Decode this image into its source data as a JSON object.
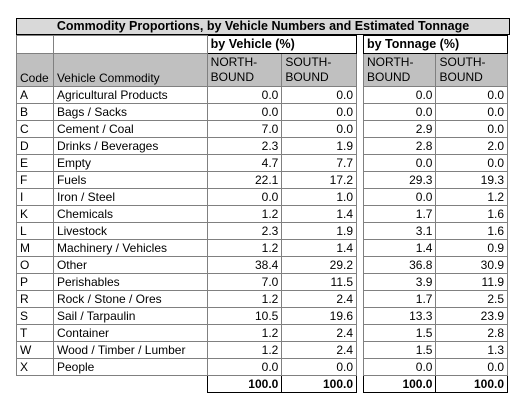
{
  "title": "Commodity Proportions, by Vehicle Numbers and Estimated Tonnage",
  "groups": {
    "vehicle": "by Vehicle (%)",
    "tonnage": "by Tonnage (%)"
  },
  "headers": {
    "code": "Code",
    "commodity": "Vehicle Commodity",
    "north": [
      "NORTH-",
      "BOUND"
    ],
    "south": [
      "SOUTH-",
      "BOUND"
    ]
  },
  "rows": [
    {
      "code": "A",
      "name": "Agricultural Products",
      "vn": "0.0",
      "vs": "0.0",
      "tn": "0.0",
      "ts": "0.0"
    },
    {
      "code": "B",
      "name": "Bags / Sacks",
      "vn": "0.0",
      "vs": "0.0",
      "tn": "0.0",
      "ts": "0.0"
    },
    {
      "code": "C",
      "name": "Cement / Coal",
      "vn": "7.0",
      "vs": "0.0",
      "tn": "2.9",
      "ts": "0.0"
    },
    {
      "code": "D",
      "name": "Drinks / Beverages",
      "vn": "2.3",
      "vs": "1.9",
      "tn": "2.8",
      "ts": "2.0"
    },
    {
      "code": "E",
      "name": "Empty",
      "vn": "4.7",
      "vs": "7.7",
      "tn": "0.0",
      "ts": "0.0"
    },
    {
      "code": "F",
      "name": "Fuels",
      "vn": "22.1",
      "vs": "17.2",
      "tn": "29.3",
      "ts": "19.3"
    },
    {
      "code": "I",
      "name": "Iron / Steel",
      "vn": "0.0",
      "vs": "1.0",
      "tn": "0.0",
      "ts": "1.2"
    },
    {
      "code": "K",
      "name": "Chemicals",
      "vn": "1.2",
      "vs": "1.4",
      "tn": "1.7",
      "ts": "1.6"
    },
    {
      "code": "L",
      "name": "Livestock",
      "vn": "2.3",
      "vs": "1.9",
      "tn": "3.1",
      "ts": "1.6"
    },
    {
      "code": "M",
      "name": "Machinery / Vehicles",
      "vn": "1.2",
      "vs": "1.4",
      "tn": "1.4",
      "ts": "0.9"
    },
    {
      "code": "O",
      "name": "Other",
      "vn": "38.4",
      "vs": "29.2",
      "tn": "36.8",
      "ts": "30.9"
    },
    {
      "code": "P",
      "name": "Perishables",
      "vn": "7.0",
      "vs": "11.5",
      "tn": "3.9",
      "ts": "11.9"
    },
    {
      "code": "R",
      "name": "Rock / Stone / Ores",
      "vn": "1.2",
      "vs": "2.4",
      "tn": "1.7",
      "ts": "2.5"
    },
    {
      "code": "S",
      "name": "Sail / Tarpaulin",
      "vn": "10.5",
      "vs": "19.6",
      "tn": "13.3",
      "ts": "23.9"
    },
    {
      "code": "T",
      "name": "Container",
      "vn": "1.2",
      "vs": "2.4",
      "tn": "1.5",
      "ts": "2.8"
    },
    {
      "code": "W",
      "name": "Wood / Timber / Lumber",
      "vn": "1.2",
      "vs": "2.4",
      "tn": "1.5",
      "ts": "1.3"
    },
    {
      "code": "X",
      "name": "People",
      "vn": "0.0",
      "vs": "0.0",
      "tn": "0.0",
      "ts": "0.0"
    }
  ],
  "totals": {
    "vn": "100.0",
    "vs": "100.0",
    "tn": "100.0",
    "ts": "100.0"
  }
}
